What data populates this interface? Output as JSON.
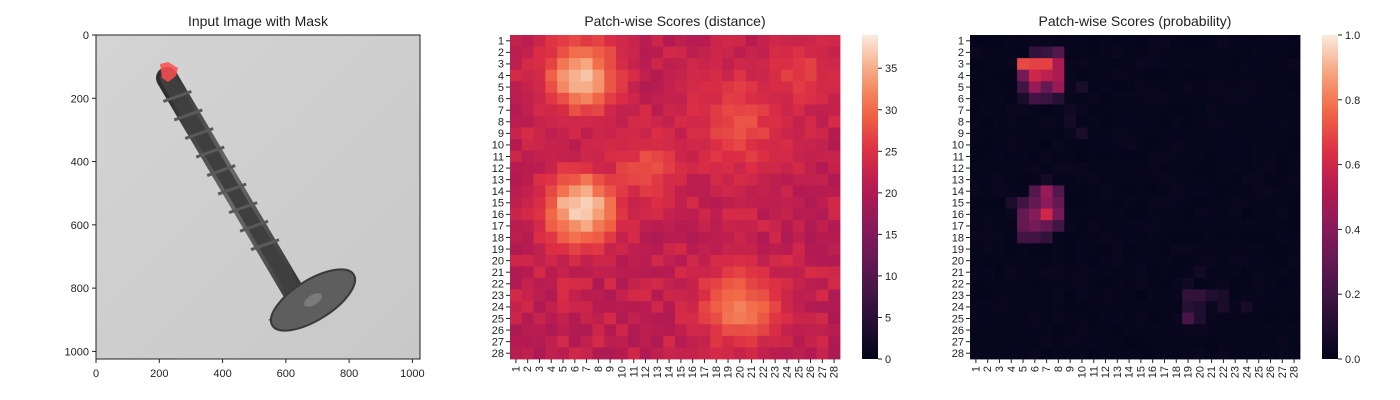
{
  "chart_data": [
    {
      "type": "image",
      "title": "Input Image with Mask",
      "xlim": [
        0,
        1024
      ],
      "ylim": [
        1024,
        0
      ],
      "xticks": [
        0,
        200,
        400,
        600,
        800,
        1000
      ],
      "yticks": [
        0,
        200,
        400,
        600,
        800,
        1000
      ],
      "background_color": "#cfcfcf",
      "object": "screw",
      "object_color": "#4d4d4d",
      "mask_color": "#ff4d4d",
      "mask_region": {
        "x": [
          195,
          265
        ],
        "y": [
          90,
          160
        ]
      }
    },
    {
      "type": "heatmap",
      "title": "Patch-wise Scores (distance)",
      "xlabels": [
        "1",
        "2",
        "3",
        "4",
        "5",
        "6",
        "7",
        "8",
        "9",
        "10",
        "11",
        "12",
        "13",
        "14",
        "15",
        "16",
        "17",
        "18",
        "19",
        "20",
        "21",
        "22",
        "23",
        "24",
        "25",
        "26",
        "27",
        "28"
      ],
      "ylabels": [
        "1",
        "2",
        "3",
        "4",
        "5",
        "6",
        "7",
        "8",
        "9",
        "10",
        "11",
        "12",
        "13",
        "14",
        "15",
        "16",
        "17",
        "18",
        "19",
        "20",
        "21",
        "22",
        "23",
        "24",
        "25",
        "26",
        "27",
        "28"
      ],
      "colormap": "rocket",
      "vmin": 0,
      "vmax": 39,
      "colorbar_ticks": [
        0,
        5,
        10,
        15,
        20,
        25,
        30,
        35
      ],
      "baseline": 21,
      "hotspots": [
        {
          "row": 4,
          "col": 6.5,
          "peak": 36,
          "spread": 2.2
        },
        {
          "row": 15.5,
          "col": 6.5,
          "peak": 38,
          "spread": 2.2
        },
        {
          "row": 24,
          "col": 20,
          "peak": 31,
          "spread": 2.5
        },
        {
          "row": 8,
          "col": 20,
          "peak": 27,
          "spread": 3.5
        },
        {
          "row": 12,
          "col": 12,
          "peak": 27,
          "spread": 2.5
        },
        {
          "row": 4,
          "col": 25,
          "peak": 26,
          "spread": 2.5
        }
      ]
    },
    {
      "type": "heatmap",
      "title": "Patch-wise Scores (probability)",
      "xlabels": [
        "1",
        "2",
        "3",
        "4",
        "5",
        "6",
        "7",
        "8",
        "9",
        "10",
        "11",
        "12",
        "13",
        "14",
        "15",
        "16",
        "17",
        "18",
        "19",
        "20",
        "21",
        "22",
        "23",
        "24",
        "25",
        "26",
        "27",
        "28"
      ],
      "ylabels": [
        "1",
        "2",
        "3",
        "4",
        "5",
        "6",
        "7",
        "8",
        "9",
        "10",
        "11",
        "12",
        "13",
        "14",
        "15",
        "16",
        "17",
        "18",
        "19",
        "20",
        "21",
        "22",
        "23",
        "24",
        "25",
        "26",
        "27",
        "28"
      ],
      "colormap": "rocket",
      "vmin": 0,
      "vmax": 1,
      "colorbar_ticks": [
        0.0,
        0.2,
        0.4,
        0.6,
        0.8,
        1.0
      ],
      "cells": [
        [
          3,
          5,
          0.7
        ],
        [
          3,
          6,
          0.68
        ],
        [
          3,
          7,
          0.68
        ],
        [
          3,
          8,
          0.5
        ],
        [
          2,
          6,
          0.15
        ],
        [
          2,
          7,
          0.18
        ],
        [
          2,
          8,
          0.25
        ],
        [
          4,
          5,
          0.35
        ],
        [
          4,
          6,
          0.6
        ],
        [
          4,
          7,
          0.55
        ],
        [
          4,
          8,
          0.5
        ],
        [
          5,
          5,
          0.2
        ],
        [
          5,
          6,
          0.45
        ],
        [
          5,
          7,
          0.3
        ],
        [
          5,
          8,
          0.45
        ],
        [
          6,
          5,
          0.08
        ],
        [
          6,
          6,
          0.2
        ],
        [
          6,
          7,
          0.18
        ],
        [
          6,
          8,
          0.12
        ],
        [
          5,
          10,
          0.08
        ],
        [
          7,
          9,
          0.05
        ],
        [
          8,
          9,
          0.06
        ],
        [
          9,
          10,
          0.08
        ],
        [
          13,
          7,
          0.06
        ],
        [
          14,
          6,
          0.25
        ],
        [
          14,
          7,
          0.45
        ],
        [
          14,
          8,
          0.25
        ],
        [
          15,
          4,
          0.08
        ],
        [
          15,
          5,
          0.2
        ],
        [
          15,
          6,
          0.3
        ],
        [
          15,
          7,
          0.42
        ],
        [
          15,
          8,
          0.3
        ],
        [
          16,
          5,
          0.3
        ],
        [
          16,
          6,
          0.4
        ],
        [
          16,
          7,
          0.6
        ],
        [
          16,
          8,
          0.35
        ],
        [
          17,
          5,
          0.3
        ],
        [
          17,
          6,
          0.35
        ],
        [
          17,
          7,
          0.3
        ],
        [
          17,
          8,
          0.2
        ],
        [
          18,
          5,
          0.2
        ],
        [
          18,
          6,
          0.2
        ],
        [
          18,
          7,
          0.15
        ],
        [
          23,
          19,
          0.15
        ],
        [
          23,
          20,
          0.15
        ],
        [
          23,
          21,
          0.1
        ],
        [
          23,
          22,
          0.08
        ],
        [
          24,
          19,
          0.12
        ],
        [
          24,
          20,
          0.1
        ],
        [
          24,
          22,
          0.08
        ],
        [
          24,
          24,
          0.07
        ],
        [
          25,
          19,
          0.22
        ],
        [
          25,
          20,
          0.1
        ],
        [
          21,
          20,
          0.05
        ],
        [
          22,
          19,
          0.05
        ]
      ]
    }
  ]
}
